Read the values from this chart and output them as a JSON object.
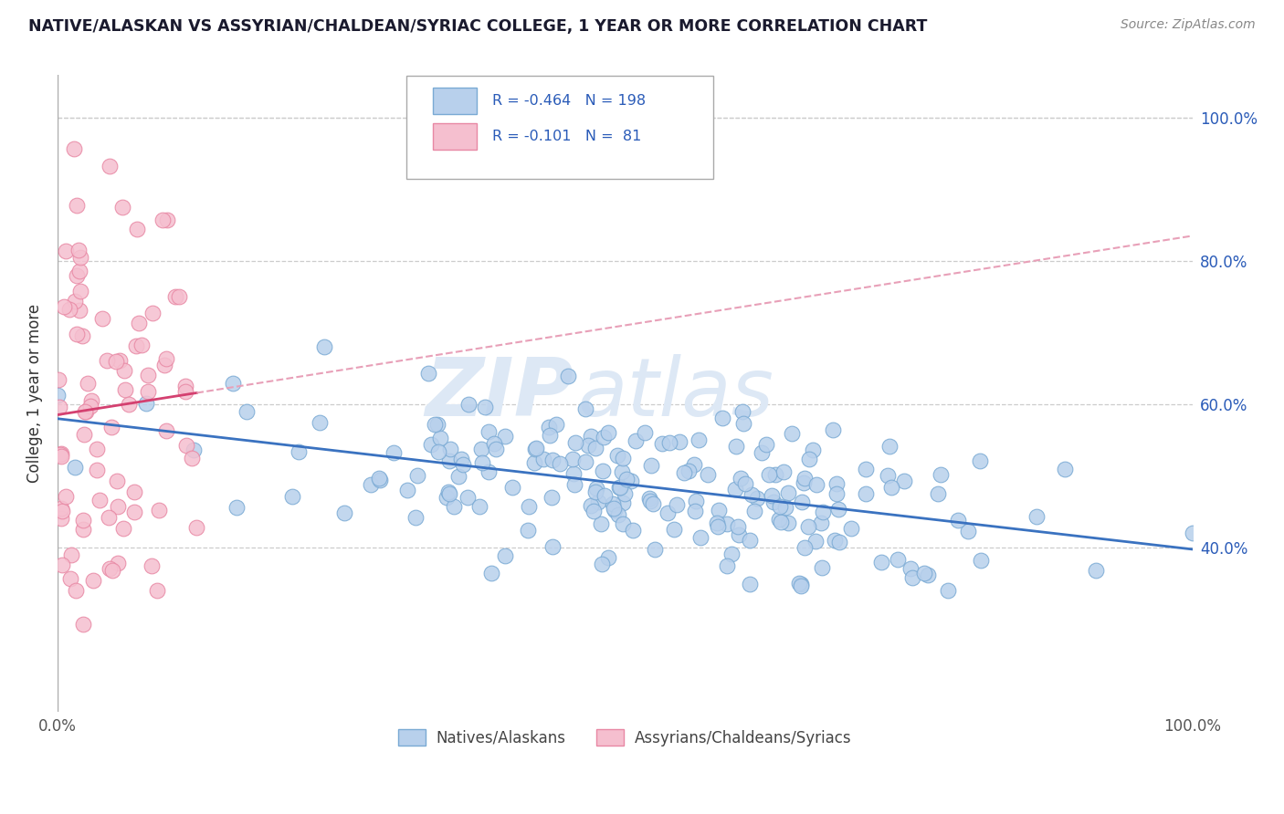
{
  "title": "NATIVE/ALASKAN VS ASSYRIAN/CHALDEAN/SYRIAC COLLEGE, 1 YEAR OR MORE CORRELATION CHART",
  "source": "Source: ZipAtlas.com",
  "ylabel": "College, 1 year or more",
  "watermark_zip": "ZIP",
  "watermark_atlas": "atlas",
  "blue_R": -0.464,
  "blue_N": 198,
  "pink_R": -0.101,
  "pink_N": 81,
  "blue_dot_color": "#b8d0ec",
  "blue_edge_color": "#7aaad4",
  "pink_dot_color": "#f5bfcf",
  "pink_edge_color": "#e888a4",
  "blue_line_color": "#3a72c0",
  "pink_line_color": "#d44070",
  "pink_dash_color": "#e8a0b8",
  "legend_blue_label": "Natives/Alaskans",
  "legend_pink_label": "Assyrians/Chaldeans/Syriacs",
  "xlim": [
    0.0,
    1.0
  ],
  "ylim": [
    0.17,
    1.06
  ],
  "right_yticks": [
    0.4,
    0.6,
    0.8,
    1.0
  ],
  "right_yticklabels": [
    "40.0%",
    "60.0%",
    "80.0%",
    "100.0%"
  ],
  "legend_color": "#2a5bb8",
  "title_fontsize": 12.5,
  "source_fontsize": 10,
  "tick_fontsize": 12,
  "legend_fontsize": 11.5
}
